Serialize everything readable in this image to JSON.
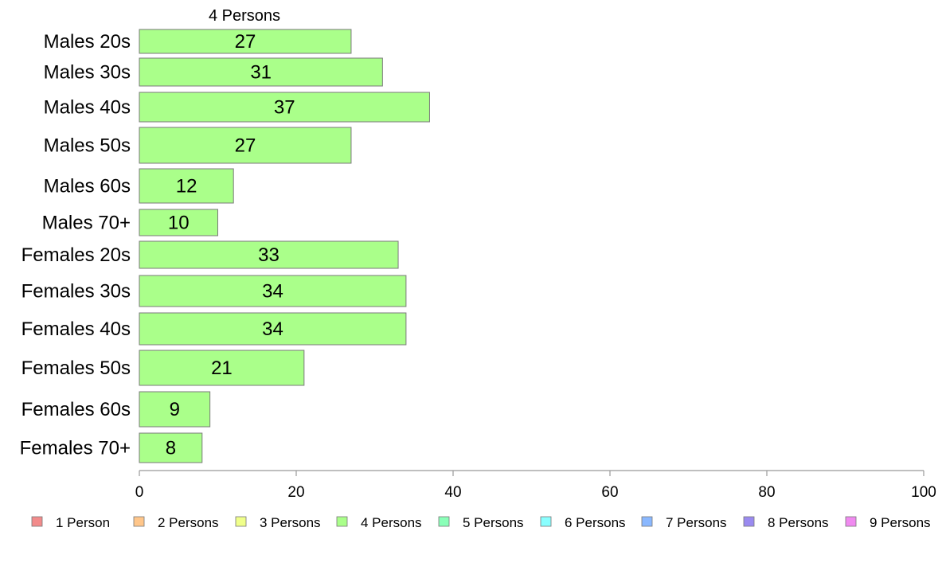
{
  "chart_data": {
    "type": "bar",
    "orientation": "horizontal",
    "title": "4 Persons",
    "categories": [
      "Males 20s",
      "Males 30s",
      "Males 40s",
      "Males 50s",
      "Males 60s",
      "Males 70+",
      "Females 20s",
      "Females 30s",
      "Females 40s",
      "Females 50s",
      "Females 60s",
      "Females 70+"
    ],
    "series": [
      {
        "name": "4 Persons",
        "values": [
          27,
          31,
          37,
          27,
          12,
          10,
          33,
          34,
          34,
          21,
          9,
          8
        ]
      }
    ],
    "xlim": [
      0,
      100
    ],
    "xticks": [
      "0",
      "20",
      "40",
      "60",
      "80",
      "100"
    ],
    "xlabel": "",
    "ylabel": "",
    "grid": false,
    "bar_color": "#aaff8a",
    "bar_stroke": "#7a7a7a",
    "legend_position": "bottom",
    "legend": [
      {
        "label": "1 Person",
        "color": "#f28b8b"
      },
      {
        "label": "2 Persons",
        "color": "#ffc68a"
      },
      {
        "label": "3 Persons",
        "color": "#f0ff8a"
      },
      {
        "label": "4 Persons",
        "color": "#aaff8a"
      },
      {
        "label": "5 Persons",
        "color": "#8affb8"
      },
      {
        "label": "6 Persons",
        "color": "#8affff"
      },
      {
        "label": "7 Persons",
        "color": "#8ab8ff"
      },
      {
        "label": "8 Persons",
        "color": "#9a8af0"
      },
      {
        "label": "9 Persons",
        "color": "#f08af0"
      }
    ]
  }
}
